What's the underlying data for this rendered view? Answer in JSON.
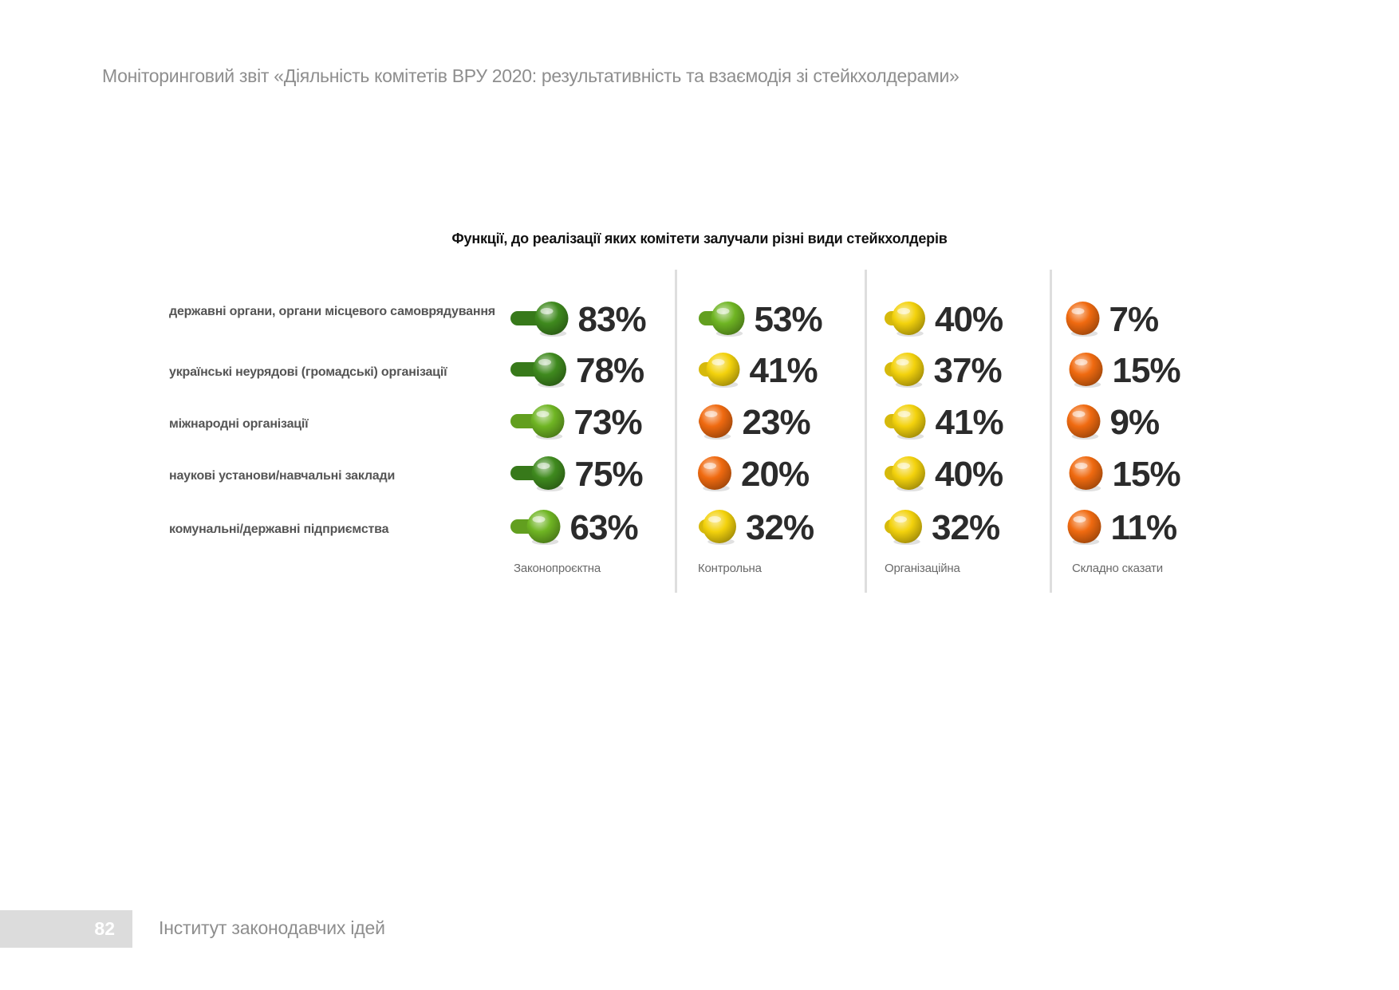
{
  "header": {
    "running_title": "Моніторинговий звіт «Діяльність комітетів ВРУ 2020: результативність та взаємодія зі стейкхолдерами»"
  },
  "chart_data": {
    "type": "table",
    "title": "Функції, до реалізації яких комітети залучали різні види стейкхолдерів",
    "categories": [
      "державні органи, органи місцевого самоврядування",
      "українські неурядові (громадські) організації",
      "міжнародні організації",
      "наукові установи/навчальні заклади",
      "комунальні/державні підприємства"
    ],
    "series": [
      {
        "name": "Законопроєктна",
        "values": [
          83,
          78,
          73,
          75,
          63
        ]
      },
      {
        "name": "Контрольна",
        "values": [
          53,
          41,
          23,
          20,
          32
        ]
      },
      {
        "name": "Організаційна",
        "values": [
          40,
          37,
          41,
          40,
          32
        ]
      },
      {
        "name": "Складно сказати",
        "values": [
          7,
          15,
          9,
          15,
          11
        ]
      }
    ],
    "value_suffix": "%",
    "indicator_colors": {
      "dark_green": "#3f8a1e",
      "green": "#6fb523",
      "yellow": "#f3d20c",
      "orange": "#f06a10"
    }
  },
  "footer": {
    "page_number": "82",
    "publisher": "Інститут законодавчих ідей"
  }
}
